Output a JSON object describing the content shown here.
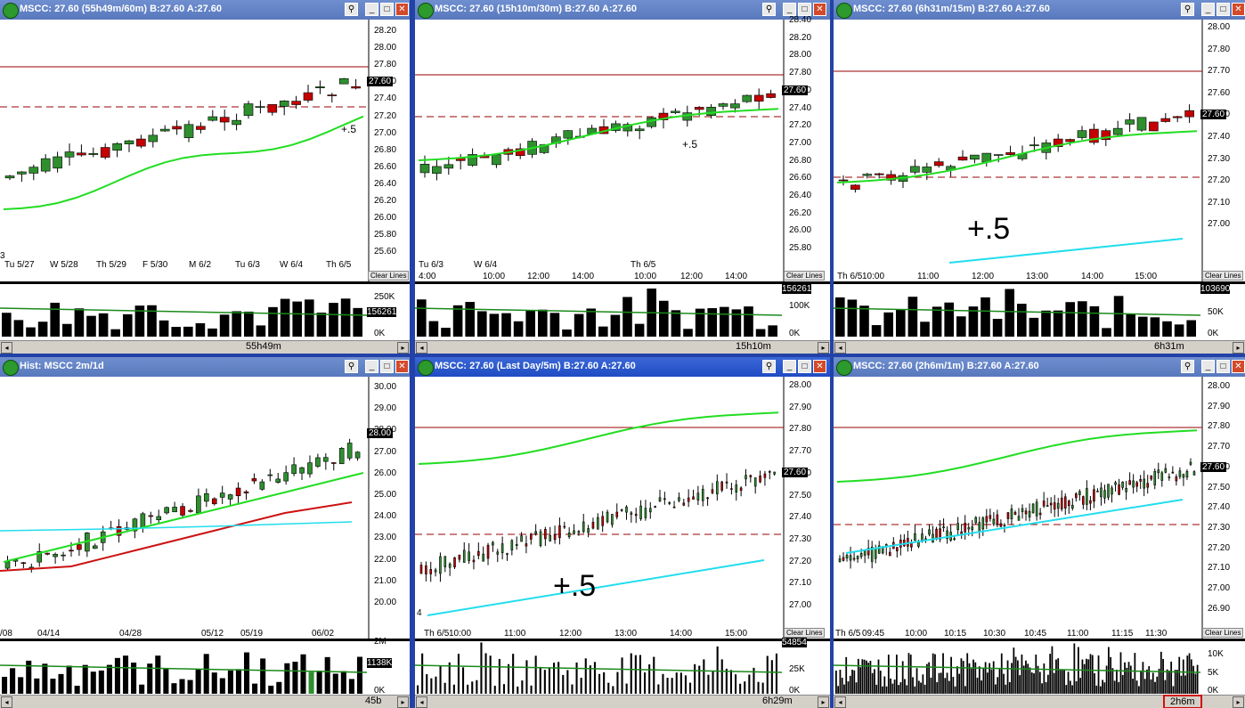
{
  "colors": {
    "up": "#2f8f2f",
    "down": "#c40000",
    "ma": "#22dd22",
    "ma_red": "#cc1111",
    "ma_cyan": "#22ddee",
    "level": "#990000",
    "vol": "#000000",
    "window_border": "#2242a8"
  },
  "windows": [
    {
      "id": "w1",
      "title": "MSCC: 27.60 (55h49m/60m) B:27.60 A:27.60",
      "active": false,
      "price_labels": [
        "28.20",
        "28.00",
        "27.80",
        "27.60",
        "27.40",
        "27.20",
        "27.00",
        "26.80",
        "26.60",
        "26.40",
        "26.20",
        "26.00",
        "25.80",
        "25.60"
      ],
      "last_price": "27.60",
      "time_labels": [
        "Tu 5/27",
        "W 5/28",
        "Th 5/29",
        "F 5/30",
        "M 6/2",
        "Tu 6/3",
        "W 6/4",
        "Th 6/5"
      ],
      "left_fragment": "3",
      "note": "+.5",
      "clear_lines": "Clear Lines",
      "volume_labels": [
        "250K",
        "156261",
        "0K"
      ],
      "scroll_label": "55h49m"
    },
    {
      "id": "w2",
      "title": "MSCC: 27.60 (15h10m/30m) B:27.60 A:27.60",
      "active": false,
      "price_labels": [
        "28.40",
        "28.20",
        "28.00",
        "27.80",
        "27.60",
        "27.40",
        "27.20",
        "27.00",
        "26.80",
        "26.60",
        "26.40",
        "26.20",
        "26.00",
        "25.80"
      ],
      "last_price": "27.60",
      "time_labels": [
        "Tu 6/3",
        "W 6/4",
        "Th 6/5"
      ],
      "time_sub": [
        "4:00",
        "10:00",
        "12:00",
        "14:00",
        "10:00",
        "12:00",
        "14:00"
      ],
      "note": "+.5",
      "clear_lines": "Clear Lines",
      "volume_labels": [
        "156261",
        "100K",
        "0K"
      ],
      "scroll_label": "15h10m"
    },
    {
      "id": "w3",
      "title": "MSCC: 27.60 (6h31m/15m) B:27.60 A:27.60",
      "active": false,
      "price_labels": [
        "28.00",
        "27.80",
        "27.70",
        "27.60",
        "27.50",
        "27.40",
        "27.30",
        "27.20",
        "27.10",
        "27.00"
      ],
      "last_price": "27.60",
      "time_labels": [
        "Th 6/5",
        "10:00",
        "11:00",
        "12:00",
        "13:00",
        "14:00",
        "15:00"
      ],
      "note": "+.5",
      "clear_lines": "Clear Lines",
      "volume_labels": [
        "103690",
        "50K",
        "0K"
      ],
      "scroll_label": "6h31m"
    },
    {
      "id": "w4",
      "title": "Hist: MSCC 2m/1d",
      "active": false,
      "price_labels": [
        "30.00",
        "29.00",
        "28.00",
        "27.00",
        "26.00",
        "25.00",
        "24.00",
        "23.00",
        "22.00",
        "21.00",
        "20.00"
      ],
      "last_price": "28.00",
      "time_labels": [
        "/08",
        "04/14",
        "04/28",
        "05/12",
        "05/19",
        "06/02"
      ],
      "volume_labels": [
        "2M",
        "1138K",
        "0K"
      ],
      "scroll_label": "45b"
    },
    {
      "id": "w5",
      "title": "MSCC: 27.60 (Last Day/5m) B:27.60 A:27.60",
      "active": true,
      "price_labels": [
        "28.00",
        "27.90",
        "27.80",
        "27.70",
        "27.60",
        "27.50",
        "27.40",
        "27.30",
        "27.20",
        "27.10",
        "27.00"
      ],
      "last_price": "27.60",
      "time_labels": [
        "Th 6/5",
        "10:00",
        "11:00",
        "12:00",
        "13:00",
        "14:00",
        "15:00"
      ],
      "left_fragment": "4",
      "note": "+.5",
      "clear_lines": "Clear Lines",
      "volume_labels": [
        "54854",
        "25K",
        "0K"
      ],
      "scroll_label": "6h29m"
    },
    {
      "id": "w6",
      "title": "MSCC: 27.60 (2h6m/1m) B:27.60 A:27.60",
      "active": false,
      "price_labels": [
        "28.00",
        "27.90",
        "27.80",
        "27.70",
        "27.60",
        "27.50",
        "27.40",
        "27.30",
        "27.20",
        "27.10",
        "27.00",
        "26.90"
      ],
      "last_price": "27.60",
      "time_labels": [
        "Th 6/5",
        "09:45",
        "10:00",
        "10:15",
        "10:30",
        "10:45",
        "11:00",
        "11:15",
        "11:30"
      ],
      "clear_lines": "Clear Lines",
      "volume_labels": [
        "10K",
        "5K",
        "0K"
      ],
      "scroll_label": "2h6m"
    }
  ]
}
